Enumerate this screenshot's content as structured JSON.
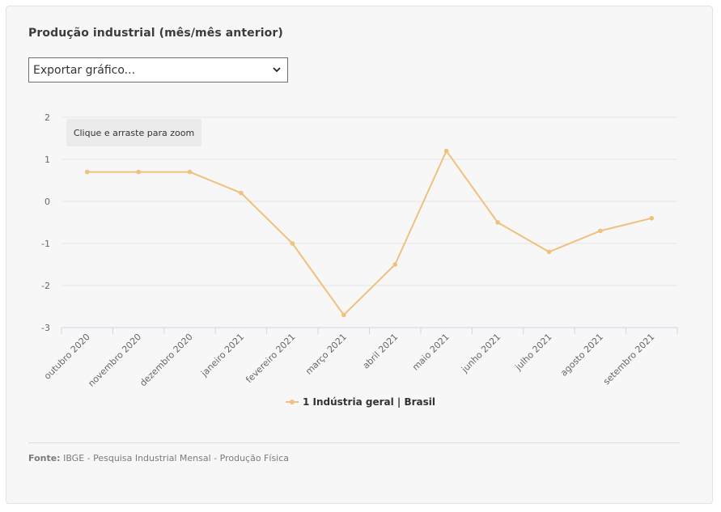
{
  "title": "Produção industrial (mês/mês anterior)",
  "export": {
    "label": "Exportar gráfico...",
    "icon": "chevron-down-icon"
  },
  "zoom_hint": "Clique e arraste para zoom",
  "source": {
    "label": "Fonte:",
    "text": "IBGE - Pesquisa Industrial Mensal - Produção Física"
  },
  "colors": {
    "series": "#f0c07f",
    "grid": "#e6e6e6",
    "axis": "#ccd6eb",
    "tick_text": "#666666"
  },
  "chart_data": {
    "type": "line",
    "categories": [
      "outubro 2020",
      "novembro 2020",
      "dezembro 2020",
      "janeiro 2021",
      "fevereiro 2021",
      "março 2021",
      "abril 2021",
      "maio 2021",
      "junho 2021",
      "julho 2021",
      "agosto 2021",
      "setembro 2021"
    ],
    "series": [
      {
        "name": "1 Indústria geral | Brasil",
        "values": [
          0.7,
          0.7,
          0.7,
          0.2,
          -1.0,
          -2.7,
          -1.5,
          1.2,
          -0.5,
          -1.2,
          -0.7,
          -0.4
        ]
      }
    ],
    "yticks": [
      2,
      1,
      0,
      -1,
      -2,
      -3
    ],
    "ylim": [
      -3,
      2
    ],
    "grid": true,
    "legend": "bottom-center"
  }
}
